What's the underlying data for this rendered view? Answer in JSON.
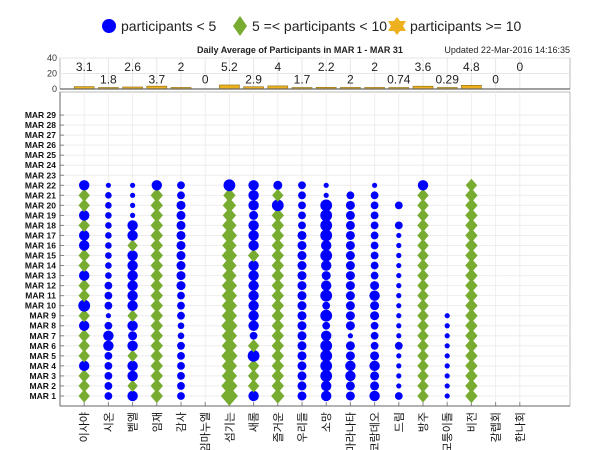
{
  "legend": [
    {
      "label": "participants < 5",
      "marker": "circle",
      "color": "#0000ff"
    },
    {
      "label": "5 =< participants < 10",
      "marker": "diamond",
      "color": "#77ac30"
    },
    {
      "label": "participants >= 10",
      "marker": "star",
      "color": "#edb120"
    }
  ],
  "updated_text": "Updated 22-Mar-2016 14:16:35",
  "chart_data": [
    {
      "type": "bar",
      "title": "Daily Average of Participants in MAR 1 - MAR 31",
      "ylim": [
        0,
        40
      ],
      "yticks": [
        0,
        20,
        40
      ],
      "categories": [
        "이사야",
        "시온",
        "벧엘",
        "임재",
        "감사",
        "임마누엘",
        "섬기는",
        "새롬",
        "즐거운",
        "우리들",
        "소망",
        "마라나타",
        "코람데오",
        "드림",
        "방주",
        "모퉁이돌",
        "비전",
        "갈렙회",
        "한나회"
      ],
      "values": [
        3.1,
        1.8,
        2.6,
        3.7,
        2,
        0,
        5.2,
        2.9,
        4,
        1.7,
        2.2,
        2,
        2,
        0.74,
        3.6,
        0.29,
        4.8,
        0,
        0
      ],
      "value_labels": [
        "3.1",
        "1.8",
        "2.6",
        "3.7",
        "2",
        "0",
        "5.2",
        "2.9",
        "4",
        "1.7",
        "2.2",
        "2",
        "2",
        "0.74",
        "3.6",
        "0.29",
        "4.8",
        "0",
        "0"
      ],
      "color": "#edb120"
    },
    {
      "type": "scatter",
      "xlabel": "",
      "ylabel": "",
      "ylim": [
        0,
        31.3
      ],
      "y_ticks": [
        "MAR 1",
        "MAR 2",
        "MAR 3",
        "MAR 4",
        "MAR 5",
        "MAR 6",
        "MAR 7",
        "MAR 8",
        "MAR 9",
        "MAR 10",
        "MAR 11",
        "MAR 12",
        "MAR 13",
        "MAR 14",
        "MAR 15",
        "MAR 16",
        "MAR 17",
        "MAR 18",
        "MAR 19",
        "MAR 20",
        "MAR 21",
        "MAR 22",
        "MAR 23",
        "MAR 24",
        "MAR 25",
        "MAR 26",
        "MAR 27",
        "MAR 28",
        "MAR 29"
      ],
      "grid": true,
      "note": "values per category for MAR 1..MAR 22; 0 = no marker",
      "series": [
        {
          "name": "이사야",
          "values": [
            6,
            6,
            6,
            4,
            6,
            6,
            6,
            4,
            6,
            4.5,
            6,
            6,
            4,
            6,
            6,
            4,
            4,
            6,
            4,
            6,
            6,
            4
          ]
        },
        {
          "name": "시온",
          "values": [
            3,
            3,
            3,
            3,
            3,
            4,
            4,
            3,
            2,
            3,
            3,
            3,
            2.5,
            2.5,
            2.5,
            2.5,
            2.5,
            2.5,
            2.5,
            2.5,
            2.5,
            2
          ]
        },
        {
          "name": "벧엘",
          "values": [
            4,
            5.5,
            4,
            4,
            5.5,
            4,
            3.5,
            4,
            5.5,
            4,
            4,
            4,
            4,
            4,
            4,
            5.5,
            4,
            4,
            2,
            2,
            2,
            2
          ]
        },
        {
          "name": "임재",
          "values": [
            6.5,
            6.5,
            6.5,
            6.5,
            6.5,
            6.5,
            6.5,
            6.5,
            6.5,
            6.5,
            6.5,
            6.5,
            6.5,
            6.5,
            6.5,
            6.5,
            6.5,
            6.5,
            6.5,
            6.5,
            6.5,
            4
          ]
        },
        {
          "name": "감사",
          "values": [
            3,
            3,
            3,
            3,
            3,
            3,
            2.5,
            2.5,
            3,
            3,
            3,
            3.5,
            3.5,
            3.5,
            3.5,
            3.5,
            3.5,
            3.5,
            3.5,
            3.5,
            3,
            3
          ]
        },
        {
          "name": "임마누엘",
          "values": [
            0,
            0,
            0,
            0,
            0,
            0,
            0,
            0,
            0,
            0,
            0,
            0,
            0,
            0,
            0,
            0,
            0,
            0,
            0,
            0,
            0,
            0
          ]
        },
        {
          "name": "섬기는",
          "values": [
            9,
            8.5,
            8,
            8,
            8.5,
            8,
            8,
            8.5,
            8,
            8,
            8,
            8,
            7.5,
            7.5,
            8,
            7.5,
            8,
            7.5,
            7,
            7,
            6.5,
            4.5
          ]
        },
        {
          "name": "새롬",
          "values": [
            4,
            6,
            6,
            6,
            4.5,
            6,
            3,
            4,
            4,
            4,
            4,
            4,
            4,
            4,
            6,
            4,
            4,
            4,
            3.5,
            4,
            4,
            4
          ]
        },
        {
          "name": "즐거운",
          "values": [
            7,
            6.5,
            6.5,
            6.5,
            6.5,
            6.5,
            6.5,
            6.5,
            6.5,
            6.5,
            6.5,
            6.5,
            6.5,
            6.5,
            6.5,
            6.5,
            6.5,
            6.5,
            6.5,
            4.5,
            6,
            3.5
          ]
        },
        {
          "name": "우리들",
          "values": [
            3.5,
            3.5,
            3.5,
            3.5,
            3.5,
            3.5,
            3.5,
            3.5,
            3.5,
            3.5,
            3.5,
            3.5,
            3.5,
            3.5,
            3.5,
            3.5,
            3.5,
            3,
            3,
            3,
            3,
            3
          ]
        },
        {
          "name": "소망",
          "values": [
            4,
            4,
            4.5,
            4.5,
            4.5,
            4.5,
            4,
            3,
            4.5,
            3,
            4.5,
            4,
            3.5,
            4,
            4.5,
            4,
            4.5,
            4.5,
            4.5,
            4.5,
            2,
            2
          ]
        },
        {
          "name": "마라나타",
          "values": [
            3.5,
            3.5,
            4,
            4,
            3.5,
            3.5,
            2,
            3.5,
            3.5,
            3.5,
            3.5,
            3.5,
            3.5,
            3.5,
            3.5,
            3.5,
            3.5,
            3.5,
            3.5,
            3.5,
            3,
            0
          ]
        },
        {
          "name": "코람데오",
          "values": [
            4,
            3.5,
            3.5,
            4,
            3.5,
            3,
            3,
            3,
            3.5,
            3.5,
            4,
            3.5,
            3,
            3,
            3,
            3,
            3,
            3,
            3,
            3,
            3,
            2
          ]
        },
        {
          "name": "드림",
          "values": [
            3,
            2,
            2,
            2,
            2,
            3,
            2,
            2,
            2,
            2,
            2,
            2,
            2,
            2,
            2,
            2,
            2,
            3,
            0,
            3,
            0,
            0
          ]
        },
        {
          "name": "방주",
          "values": [
            6,
            6,
            6,
            6,
            6,
            6,
            6,
            6,
            6,
            6,
            6,
            6,
            6,
            6,
            6,
            6,
            6,
            6,
            6,
            6,
            6,
            4
          ]
        },
        {
          "name": "모퉁이돌",
          "values": [
            2,
            2,
            2,
            2,
            2,
            2,
            2,
            2,
            2,
            0,
            0,
            0,
            0,
            0,
            0,
            0,
            0,
            0,
            0,
            0,
            0,
            0
          ]
        },
        {
          "name": "비전",
          "values": [
            6.5,
            6.5,
            6.5,
            6.5,
            6.5,
            6.5,
            6.5,
            6.5,
            6.5,
            6.5,
            6.5,
            6.5,
            6.5,
            6.5,
            6.5,
            6.5,
            6.5,
            6.5,
            6.5,
            6.5,
            6.5,
            6
          ]
        },
        {
          "name": "갈렙회",
          "values": [
            0,
            0,
            0,
            0,
            0,
            0,
            0,
            0,
            0,
            0,
            0,
            0,
            0,
            0,
            0,
            0,
            0,
            0,
            0,
            0,
            0,
            0
          ]
        },
        {
          "name": "한나회",
          "values": [
            0,
            0,
            0,
            0,
            0,
            0,
            0,
            0,
            0,
            0,
            0,
            0,
            0,
            0,
            0,
            0,
            0,
            0,
            0,
            0,
            0,
            0
          ]
        }
      ]
    }
  ]
}
